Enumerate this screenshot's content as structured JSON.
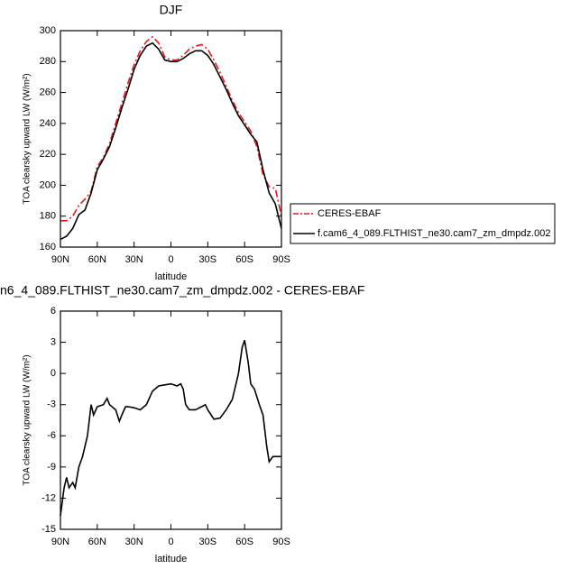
{
  "chart_data": [
    {
      "type": "line",
      "title": "DJF",
      "xlabel": "latitude",
      "ylabel": "TOA clearsky upward LW (W/m²)",
      "x": [
        90,
        85,
        80,
        75,
        70,
        65,
        60,
        55,
        50,
        45,
        40,
        35,
        30,
        25,
        20,
        15,
        10,
        5,
        0,
        -5,
        -10,
        -15,
        -20,
        -25,
        -30,
        -35,
        -40,
        -45,
        -50,
        -55,
        -60,
        -65,
        -70,
        -75,
        -80,
        -85,
        -90
      ],
      "series": [
        {
          "name": "CERES-EBAF",
          "color": "#e8191d",
          "dash": true,
          "values": [
            177,
            177,
            180,
            187,
            191,
            196,
            212,
            218,
            227,
            240,
            253,
            266,
            278,
            287,
            293,
            296,
            292,
            283,
            281,
            281,
            284,
            288,
            290,
            291,
            288,
            281,
            273,
            264,
            255,
            247,
            241,
            235,
            225,
            207,
            199,
            198,
            180
          ]
        },
        {
          "name": "f.cam6_4_089.FLTHIST_ne30.cam7_zm_dmpdz.002",
          "color": "#000000",
          "dash": false,
          "values": [
            165,
            167,
            172,
            181,
            184,
            195,
            210,
            217,
            225,
            237,
            250,
            262,
            275,
            284,
            290,
            292,
            288,
            281,
            280,
            280,
            282,
            285,
            287,
            287,
            284,
            278,
            270,
            262,
            253,
            245,
            239,
            233,
            228,
            210,
            195,
            188,
            172
          ]
        }
      ],
      "xlim": [
        90,
        -90
      ],
      "xticks": [
        {
          "value": 90,
          "label": "90N"
        },
        {
          "value": 60,
          "label": "60N"
        },
        {
          "value": 30,
          "label": "30N"
        },
        0,
        {
          "value": -30,
          "label": "30S"
        },
        {
          "value": -60,
          "label": "60S"
        },
        {
          "value": -90,
          "label": "90S"
        }
      ],
      "ylim": [
        160,
        300
      ],
      "yticks": [
        160,
        180,
        200,
        220,
        240,
        260,
        280,
        300
      ],
      "legend": "right"
    },
    {
      "type": "line",
      "title": "n6_4_089.FLTHIST_ne30.cam7_zm_dmpdz.002 - CERES-EBAF",
      "xlabel": "latitude",
      "ylabel": "TOA clearsky upward LW (W/m²)",
      "x": [
        90,
        87,
        85,
        83,
        80,
        78,
        75,
        72,
        70,
        68,
        65,
        63,
        60,
        55,
        52,
        50,
        45,
        42,
        40,
        37,
        35,
        30,
        25,
        20,
        15,
        10,
        5,
        0,
        -5,
        -8,
        -10,
        -12,
        -15,
        -20,
        -25,
        -28,
        -30,
        -35,
        -40,
        -45,
        -50,
        -55,
        -58,
        -60,
        -63,
        -65,
        -68,
        -72,
        -75,
        -78,
        -80,
        -83,
        -85,
        -90
      ],
      "values": [
        -13.7,
        -11,
        -10,
        -11,
        -10.5,
        -11,
        -9,
        -8,
        -7,
        -6,
        -3,
        -4,
        -3.2,
        -3,
        -2.4,
        -3,
        -3.5,
        -4.6,
        -4,
        -3.2,
        -3.2,
        -3.3,
        -3.5,
        -3,
        -1.7,
        -1.2,
        -1.1,
        -1,
        -1.2,
        -1,
        -1.5,
        -3,
        -3.5,
        -3.5,
        -3.2,
        -3,
        -3.5,
        -4.4,
        -4.3,
        -3.5,
        -2.5,
        0,
        2.5,
        3.2,
        1,
        -1,
        -1.5,
        -3,
        -4,
        -7,
        -8.5,
        -8,
        -8,
        -8
      ],
      "color": "#000000",
      "xlim": [
        90,
        -90
      ],
      "xticks": [
        {
          "value": 90,
          "label": "90N"
        },
        {
          "value": 60,
          "label": "60N"
        },
        {
          "value": 30,
          "label": "30N"
        },
        0,
        {
          "value": -30,
          "label": "30S"
        },
        {
          "value": -60,
          "label": "60S"
        },
        {
          "value": -90,
          "label": "90S"
        }
      ],
      "ylim": [
        -15,
        6
      ],
      "yticks": [
        -15,
        -12,
        -9,
        -6,
        -3,
        0,
        3,
        6
      ]
    }
  ]
}
